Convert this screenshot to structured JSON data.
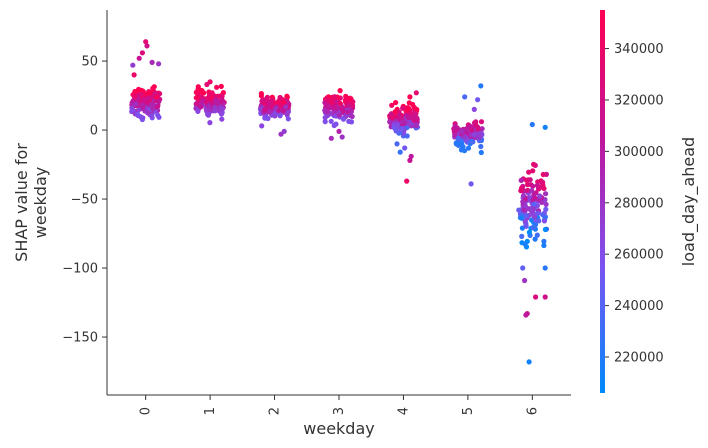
{
  "chart_data": {
    "type": "scatter",
    "title": "",
    "xlabel": "weekday",
    "ylabel": "SHAP value for\nweekday",
    "colorbar_label": "load_day_ahead",
    "xlim": [
      -0.6,
      6.6
    ],
    "ylim": [
      -192,
      87
    ],
    "x_ticks": [
      0,
      1,
      2,
      3,
      4,
      5,
      6
    ],
    "y_ticks": [
      50,
      0,
      -50,
      -100,
      -150
    ],
    "y_tick_labels": [
      "50",
      "0",
      "−50",
      "−100",
      "−150"
    ],
    "colorbar": {
      "range": [
        206000,
        355000
      ],
      "ticks": [
        340000,
        320000,
        300000,
        280000,
        260000,
        240000,
        220000
      ],
      "tick_labels": [
        "340000",
        "320000",
        "300000",
        "280000",
        "260000",
        "240000",
        "220000"
      ],
      "colormap": [
        "#008afb",
        "#7c52f0",
        "#c0149a",
        "#ff0052"
      ]
    },
    "grid": false,
    "legend": "colorbar-right",
    "groups": [
      {
        "x": 0,
        "center": 20,
        "spread": 9,
        "jitter": 0.22,
        "count": 140,
        "color_low": 0.35,
        "color_high": 1.0,
        "extras": [
          [
            0.0,
            64,
            0.85
          ],
          [
            0.02,
            61,
            0.75
          ],
          [
            -0.05,
            56,
            0.8
          ],
          [
            -0.1,
            52,
            0.7
          ],
          [
            -0.2,
            47,
            0.45
          ],
          [
            0.1,
            49,
            0.55
          ],
          [
            0.2,
            48,
            0.5
          ],
          [
            -0.18,
            40,
            0.9
          ]
        ]
      },
      {
        "x": 1,
        "center": 20,
        "spread": 7,
        "jitter": 0.22,
        "count": 130,
        "color_low": 0.4,
        "color_high": 1.0,
        "extras": [
          [
            0.0,
            35,
            0.9
          ],
          [
            -0.05,
            33,
            0.85
          ],
          [
            0.1,
            31,
            0.95
          ]
        ]
      },
      {
        "x": 2,
        "center": 17,
        "spread": 7,
        "jitter": 0.22,
        "count": 130,
        "color_low": 0.35,
        "color_high": 1.0,
        "extras": [
          [
            0.1,
            -3,
            0.5
          ],
          [
            -0.2,
            3,
            0.4
          ],
          [
            0.15,
            -1,
            0.45
          ]
        ]
      },
      {
        "x": 3,
        "center": 17,
        "spread": 8,
        "jitter": 0.22,
        "count": 130,
        "color_low": 0.35,
        "color_high": 1.0,
        "extras": [
          [
            0.0,
            -1,
            0.6
          ],
          [
            -0.12,
            -6,
            0.55
          ],
          [
            0.05,
            -5,
            0.5
          ]
        ]
      },
      {
        "x": 4,
        "center": 7,
        "spread": 9,
        "jitter": 0.22,
        "count": 130,
        "color_low": 0.2,
        "color_high": 1.0,
        "extras": [
          [
            0.05,
            -37,
            0.9
          ],
          [
            0.1,
            -22,
            0.7
          ],
          [
            0.12,
            -19,
            0.65
          ],
          [
            -0.1,
            -10,
            0.2
          ],
          [
            -0.05,
            -16,
            0.15
          ],
          [
            0.2,
            27,
            0.85
          ],
          [
            0.02,
            -13,
            0.3
          ]
        ]
      },
      {
        "x": 5,
        "center": -4,
        "spread": 7,
        "jitter": 0.22,
        "count": 120,
        "color_low": 0.1,
        "color_high": 0.8,
        "extras": [
          [
            0.05,
            -39,
            0.3
          ],
          [
            -0.05,
            24,
            0.2
          ],
          [
            0.15,
            22,
            0.3
          ],
          [
            0.2,
            32,
            0.1
          ],
          [
            0.1,
            15,
            0.4
          ]
        ]
      },
      {
        "x": 6,
        "center": -55,
        "spread": 22,
        "jitter": 0.22,
        "count": 130,
        "color_low": 0.0,
        "color_high": 0.85,
        "extras": [
          [
            -0.05,
            -168,
            0.05
          ],
          [
            -0.08,
            -133,
            0.7
          ],
          [
            -0.1,
            -134,
            0.65
          ],
          [
            0.05,
            -121,
            0.8
          ],
          [
            0.2,
            -121,
            0.75
          ],
          [
            -0.12,
            -109,
            0.5
          ],
          [
            -0.15,
            -100,
            0.25
          ],
          [
            0.0,
            4,
            0.1
          ],
          [
            0.2,
            2,
            0.05
          ],
          [
            0.2,
            -100,
            0.1
          ]
        ]
      }
    ]
  }
}
